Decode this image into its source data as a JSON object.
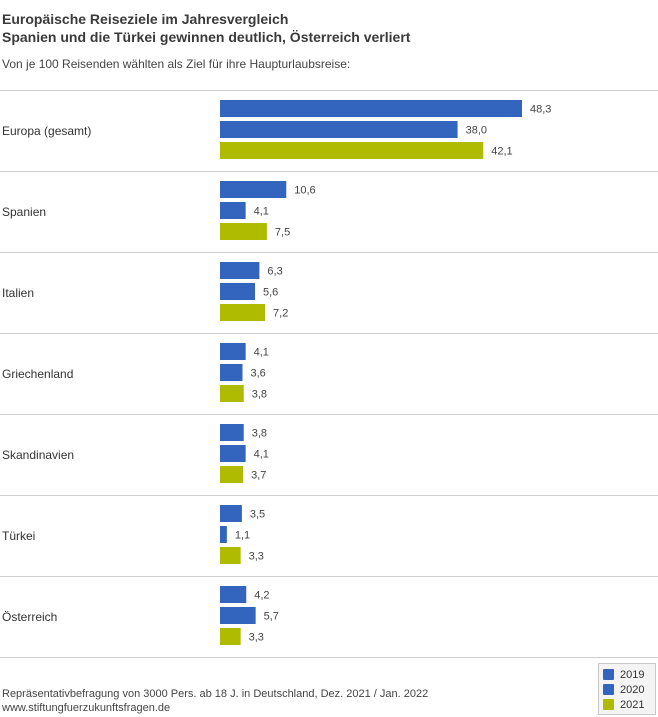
{
  "header": {
    "title_line1": "Europäische Reiseziele im Jahresvergleich",
    "title_line2": "Spanien und die Türkei gewinnen deutlich, Österreich verliert",
    "subtitle": "Von je 100 Reisenden wählten als Ziel für ihre Haupturlaubsreise:"
  },
  "footer": {
    "source": "Repräsentativbefragung von 3000 Pers. ab 18 J. in Deutschland, Dez. 2021 / Jan. 2022",
    "website": "www.stiftungfuerzukunftsfragen.de"
  },
  "legend": {
    "items": [
      {
        "label": "2019",
        "color": "#3465be"
      },
      {
        "label": "2020",
        "color": "#3465be"
      },
      {
        "label": "2021",
        "color": "#aebb00"
      }
    ]
  },
  "chart_data": {
    "type": "bar",
    "orientation": "horizontal",
    "categories": [
      "Europa (gesamt)",
      "Spanien",
      "Italien",
      "Griechenland",
      "Skandinavien",
      "Türkei",
      "Österreich"
    ],
    "series": [
      {
        "name": "2019",
        "color": "#3465be",
        "values": [
          48.3,
          10.6,
          6.3,
          4.1,
          3.8,
          3.5,
          4.2
        ],
        "labels": [
          "48,3",
          "10,6",
          "6,3",
          "4,1",
          "3,8",
          "3,5",
          "4,2"
        ]
      },
      {
        "name": "2020",
        "color": "#3465be",
        "values": [
          38.0,
          4.1,
          5.6,
          3.6,
          4.1,
          1.1,
          5.7
        ],
        "labels": [
          "38,0",
          "4,1",
          "5,6",
          "3,6",
          "4,1",
          "1,1",
          "5,7"
        ]
      },
      {
        "name": "2021",
        "color": "#aebb00",
        "values": [
          42.1,
          7.5,
          7.2,
          3.8,
          3.7,
          3.3,
          3.3
        ],
        "labels": [
          "42,1",
          "7,5",
          "7,2",
          "3,8",
          "3,7",
          "3,3",
          "3,3"
        ]
      }
    ],
    "xlim": [
      0,
      48.3
    ],
    "grid": false,
    "legend_position": "bottom-right"
  }
}
